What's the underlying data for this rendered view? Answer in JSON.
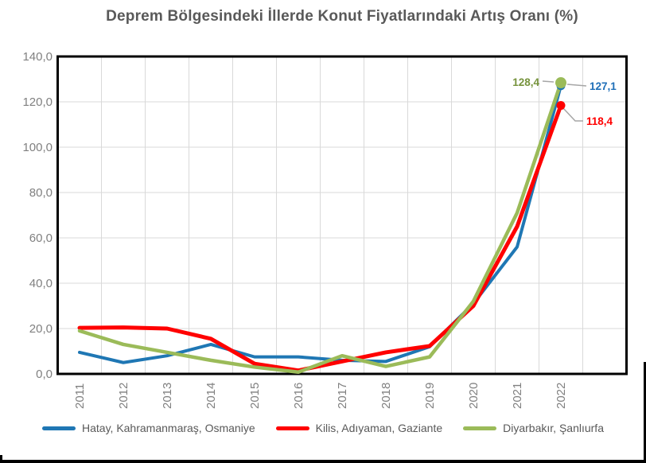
{
  "title": "Deprem Bölgesindeki İllerde Konut Fiyatlarındaki Artış Oranı (%)",
  "colors": {
    "background": "#FFFFFF",
    "gridline": "#D9D9D9",
    "plot_border": "#000000",
    "axis_text": "#808080",
    "title_text": "#595959",
    "legend_text": "#595959",
    "leader_line": "#A6A6A6"
  },
  "chart_data": {
    "type": "line",
    "title": "Deprem Bölgesindeki İllerde Konut Fiyatlarındaki Artış Oranı (%)",
    "xlabel": "",
    "ylabel": "",
    "ylim": [
      0,
      140
    ],
    "grid": true,
    "legend_position": "bottom",
    "categories": [
      "2011",
      "2012",
      "2013",
      "2014",
      "2015",
      "2016",
      "2017",
      "2018",
      "2019",
      "2020",
      "2021",
      "2022"
    ],
    "y_ticks": [
      "140,0",
      "120,0",
      "100,0",
      "80,0",
      "60,0",
      "40,0",
      "20,0",
      "0,0"
    ],
    "series": [
      {
        "name": "Hatay, Kahramanmaraş, Osmaniye",
        "color": "#1F77B4",
        "label_color": "#1F6FB8",
        "line_width": 4,
        "marker_r": 5.5,
        "values": [
          9.5,
          5.0,
          8.0,
          13.0,
          7.5,
          7.5,
          6.0,
          5.5,
          12.0,
          31.0,
          56.0,
          127.1
        ],
        "end_label": "127,1"
      },
      {
        "name": "Kilis, Adıyaman, Gaziante",
        "color": "#FF0000",
        "label_color": "#FF0000",
        "line_width": 5,
        "marker_r": 5.5,
        "values": [
          20.3,
          20.5,
          20.0,
          15.5,
          4.5,
          1.5,
          5.5,
          9.5,
          12.3,
          30.0,
          65.0,
          118.4
        ],
        "end_label": "118,4"
      },
      {
        "name": "Diyarbakır, Şanlıurfa",
        "color": "#9BBB59",
        "label_color": "#76933C",
        "line_width": 4.5,
        "marker_r": 7,
        "values": [
          19.0,
          13.0,
          9.5,
          6.0,
          3.0,
          0.8,
          8.0,
          3.3,
          7.5,
          32.0,
          71.0,
          128.4
        ],
        "end_label": "128,4"
      }
    ]
  }
}
